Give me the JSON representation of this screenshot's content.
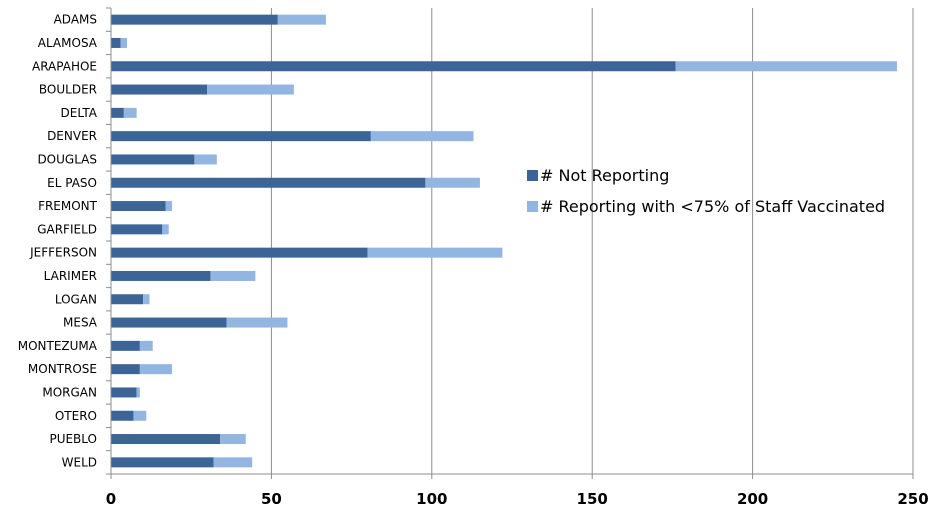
{
  "chart_data": {
    "type": "bar",
    "orientation": "horizontal",
    "stacked": true,
    "categories": [
      "ADAMS",
      "ALAMOSA",
      "ARAPAHOE",
      "BOULDER",
      "DELTA",
      "DENVER",
      "DOUGLAS",
      "EL PASO",
      "FREMONT",
      "GARFIELD",
      "JEFFERSON",
      "LARIMER",
      "LOGAN",
      "MESA",
      "MONTEZUMA",
      "MONTROSE",
      "MORGAN",
      "OTERO",
      "PUEBLO",
      "WELD"
    ],
    "series": [
      {
        "name": "# Not Reporting",
        "color": "#3c6496",
        "values": [
          52,
          3,
          176,
          30,
          4,
          81,
          26,
          98,
          17,
          16,
          80,
          31,
          10,
          36,
          9,
          9,
          8,
          7,
          34,
          32
        ]
      },
      {
        "name": "# Reporting with <75% of Staff Vaccinated",
        "color": "#93b5e2",
        "values": [
          15,
          2,
          69,
          27,
          4,
          32,
          7,
          17,
          2,
          2,
          42,
          14,
          2,
          19,
          4,
          10,
          1,
          4,
          8,
          12
        ]
      }
    ],
    "xlim": [
      0,
      250
    ],
    "xticks": [
      "0",
      "50",
      "100",
      "150",
      "200",
      "250"
    ],
    "grid": "vertical",
    "legend_position": "center-right",
    "title": "",
    "xlabel": "",
    "ylabel": ""
  }
}
